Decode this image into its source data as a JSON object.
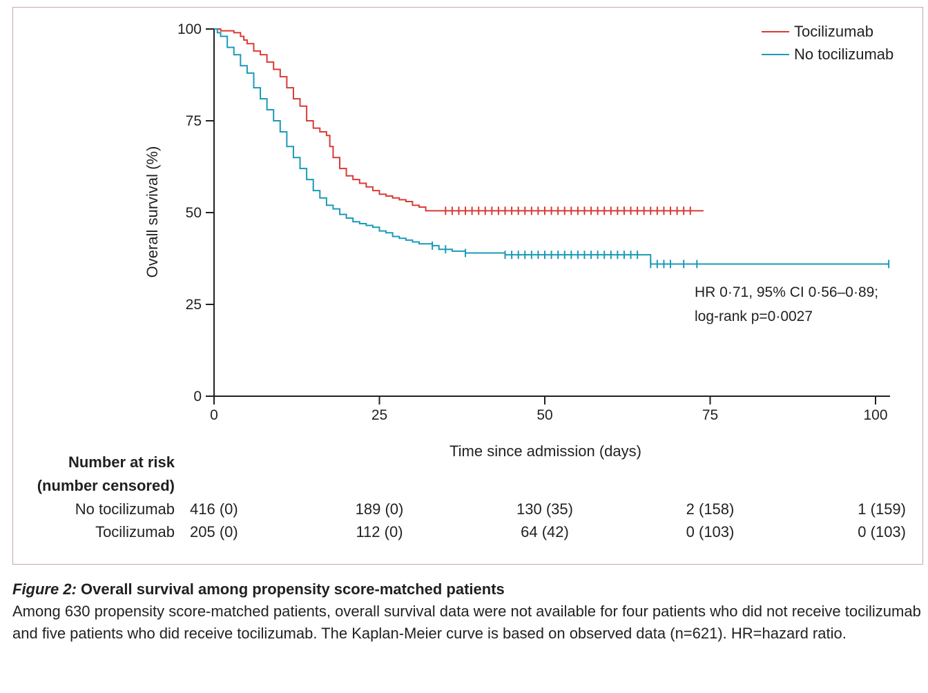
{
  "chart_data": {
    "type": "line",
    "subtype": "kaplan-meier",
    "xlabel": "Time since admission (days)",
    "ylabel": "Overall survival (%)",
    "xlim": [
      0,
      102
    ],
    "ylim": [
      0,
      100
    ],
    "xticks": [
      0,
      25,
      50,
      75,
      100
    ],
    "yticks": [
      0,
      25,
      50,
      75,
      100
    ],
    "grid": false,
    "legend_position": "top-right",
    "series": [
      {
        "name": "Tocilizumab",
        "color": "#d93a35",
        "steps": [
          [
            0,
            100
          ],
          [
            1,
            99.5
          ],
          [
            3,
            99
          ],
          [
            4,
            98
          ],
          [
            4.5,
            97
          ],
          [
            5,
            96
          ],
          [
            6,
            94
          ],
          [
            7,
            93
          ],
          [
            8,
            91
          ],
          [
            9,
            89
          ],
          [
            10,
            87
          ],
          [
            11,
            84
          ],
          [
            12,
            81
          ],
          [
            13,
            79
          ],
          [
            14,
            75
          ],
          [
            15,
            73
          ],
          [
            16,
            72
          ],
          [
            17,
            71
          ],
          [
            17.5,
            68
          ],
          [
            18,
            65
          ],
          [
            19,
            62
          ],
          [
            20,
            60
          ],
          [
            21,
            59
          ],
          [
            22,
            58
          ],
          [
            23,
            57
          ],
          [
            24,
            56
          ],
          [
            25,
            55
          ],
          [
            26,
            54.5
          ],
          [
            27,
            54
          ],
          [
            28,
            53.5
          ],
          [
            29,
            53
          ],
          [
            30,
            52
          ],
          [
            31,
            51.5
          ],
          [
            32,
            50.5
          ]
        ],
        "end_x": 74,
        "censor_x": [
          35,
          36,
          37,
          38,
          39,
          40,
          41,
          42,
          43,
          44,
          45,
          46,
          47,
          48,
          49,
          50,
          51,
          52,
          53,
          54,
          55,
          56,
          57,
          58,
          59,
          60,
          61,
          62,
          63,
          64,
          65,
          66,
          67,
          68,
          69,
          70,
          71,
          72
        ]
      },
      {
        "name": "No tocilizumab",
        "color": "#1a9ab8",
        "steps": [
          [
            0,
            100
          ],
          [
            0.5,
            99
          ],
          [
            1,
            98
          ],
          [
            2,
            95
          ],
          [
            3,
            93
          ],
          [
            4,
            90
          ],
          [
            5,
            88
          ],
          [
            6,
            84
          ],
          [
            7,
            81
          ],
          [
            8,
            78
          ],
          [
            9,
            75
          ],
          [
            10,
            72
          ],
          [
            11,
            68
          ],
          [
            12,
            65
          ],
          [
            13,
            62
          ],
          [
            14,
            59
          ],
          [
            15,
            56
          ],
          [
            16,
            54
          ],
          [
            17,
            52
          ],
          [
            18,
            51
          ],
          [
            19,
            49.5
          ],
          [
            20,
            48.5
          ],
          [
            21,
            47.5
          ],
          [
            22,
            47
          ],
          [
            23,
            46.5
          ],
          [
            24,
            46
          ],
          [
            25,
            45
          ],
          [
            26,
            44.5
          ],
          [
            27,
            43.5
          ],
          [
            28,
            43
          ],
          [
            29,
            42.5
          ],
          [
            30,
            42
          ],
          [
            31,
            41.5
          ],
          [
            33,
            41
          ],
          [
            34,
            40
          ],
          [
            36,
            39.5
          ],
          [
            38,
            39
          ],
          [
            44,
            38.5
          ],
          [
            66,
            36
          ]
        ],
        "end_x": 102,
        "censor_x": [
          33,
          35,
          38,
          44,
          45,
          46,
          47,
          48,
          49,
          50,
          51,
          52,
          53,
          54,
          55,
          56,
          57,
          58,
          59,
          60,
          61,
          62,
          63,
          64,
          66,
          67,
          68,
          69,
          71,
          73,
          102
        ]
      }
    ],
    "annotation": [
      "HR 0·71, 95% CI 0·56–0·89;",
      "log-rank p=0·0027"
    ],
    "risk_table": {
      "title": [
        "Number at risk",
        "(number censored)"
      ],
      "rows": [
        {
          "name": "No tocilizumab",
          "values": [
            "416 (0)",
            "189 (0)",
            "130 (35)",
            "2 (158)",
            "1 (159)"
          ]
        },
        {
          "name": "Tocilizumab",
          "values": [
            "205 (0)",
            "112 (0)",
            "64 (42)",
            "0 (103)",
            "0 (103)"
          ]
        }
      ]
    }
  },
  "caption": {
    "label": "Figure 2:",
    "title": " Overall survival among propensity score-matched patients",
    "text": "Among 630 propensity score-matched patients, overall survival data were not available for four patients who did not receive tocilizumab and five patients who did receive tocilizumab. The Kaplan-Meier curve is based on observed data (n=621). HR=hazard ratio."
  }
}
